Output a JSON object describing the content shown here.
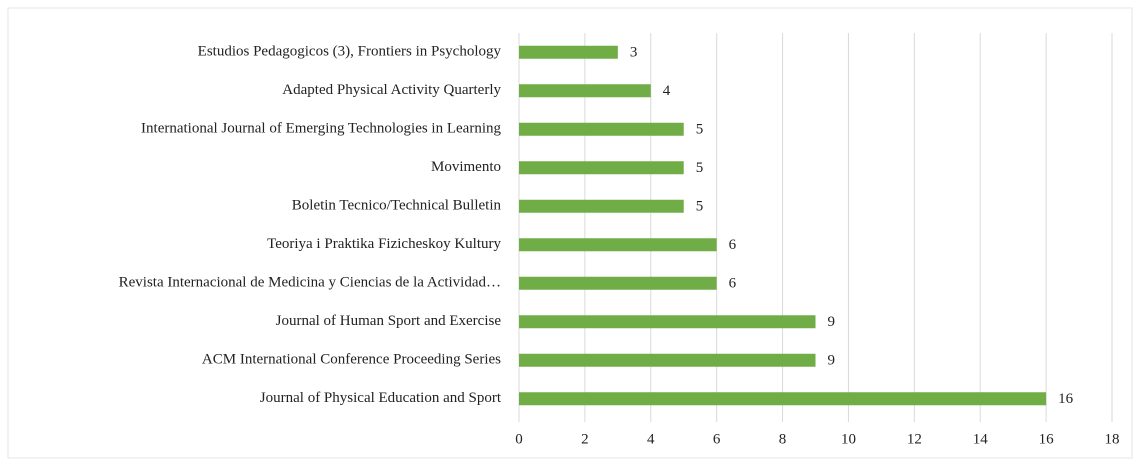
{
  "chart_data": {
    "type": "bar",
    "orientation": "horizontal",
    "categories": [
      "Estudios Pedagogicos (3), Frontiers in Psychology",
      "Adapted Physical Activity Quarterly",
      "International Journal of Emerging Technologies in Learning",
      "Movimento",
      "Boletin Tecnico/Technical Bulletin",
      "Teoriya i Praktika Fizicheskoy Kultury",
      "Revista Internacional de Medicina y Ciencias de la Actividad…",
      "Journal of Human Sport and Exercise",
      "ACM International Conference Proceeding Series",
      "Journal of Physical Education and Sport"
    ],
    "values": [
      3,
      4,
      5,
      5,
      5,
      6,
      6,
      9,
      9,
      16
    ],
    "color": "#70ad47",
    "xlim": [
      0,
      18
    ],
    "xticks": [
      0,
      2,
      4,
      6,
      8,
      10,
      12,
      14,
      16,
      18
    ],
    "grid": true
  }
}
